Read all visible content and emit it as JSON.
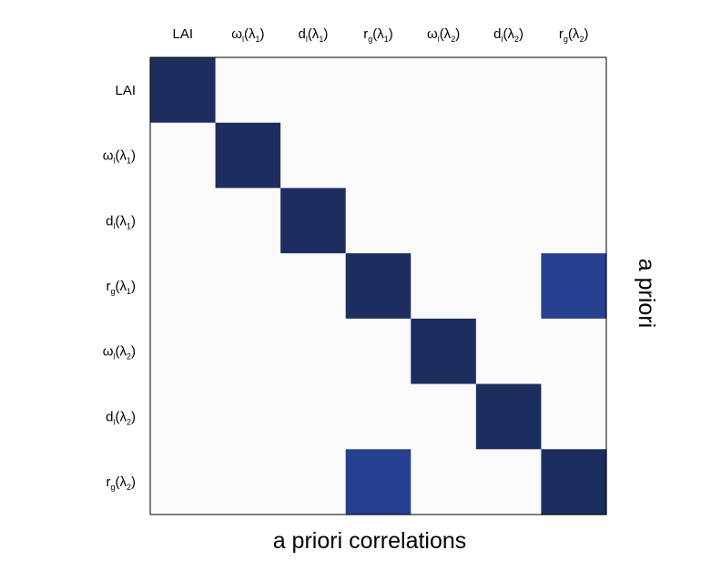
{
  "chart_data": {
    "type": "heatmap",
    "title": "",
    "xlabel": "a priori correlations",
    "right_label": "a priori",
    "colors": {
      "background": "#fafafa",
      "full": "#1d2d5e",
      "partial": "#27408f"
    },
    "tick_labels": [
      {
        "main": "LAI",
        "sub": "",
        "tail": "",
        "sub2": "",
        "end": ""
      },
      {
        "main": "ω",
        "sub": "l",
        "tail": "(λ",
        "sub2": "1",
        "end": ")"
      },
      {
        "main": "d",
        "sub": "l",
        "tail": "(λ",
        "sub2": "1",
        "end": ")"
      },
      {
        "main": "r",
        "sub": "g",
        "tail": "(λ",
        "sub2": "1",
        "end": ")"
      },
      {
        "main": "ω",
        "sub": "l",
        "tail": "(λ",
        "sub2": "2",
        "end": ")"
      },
      {
        "main": "d",
        "sub": "l",
        "tail": "(λ",
        "sub2": "2",
        "end": ")"
      },
      {
        "main": "r",
        "sub": "g",
        "tail": "(λ",
        "sub2": "2",
        "end": ")"
      }
    ],
    "matrix": [
      [
        1,
        0,
        0,
        0,
        0,
        0,
        0
      ],
      [
        0,
        1,
        0,
        0,
        0,
        0,
        0
      ],
      [
        0,
        0,
        1,
        0,
        0,
        0,
        0
      ],
      [
        0,
        0,
        0,
        1,
        0,
        0,
        0.8
      ],
      [
        0,
        0,
        0,
        0,
        1,
        0,
        0
      ],
      [
        0,
        0,
        0,
        0,
        0,
        1,
        0
      ],
      [
        0,
        0,
        0,
        0.8,
        0,
        0,
        1
      ]
    ]
  }
}
